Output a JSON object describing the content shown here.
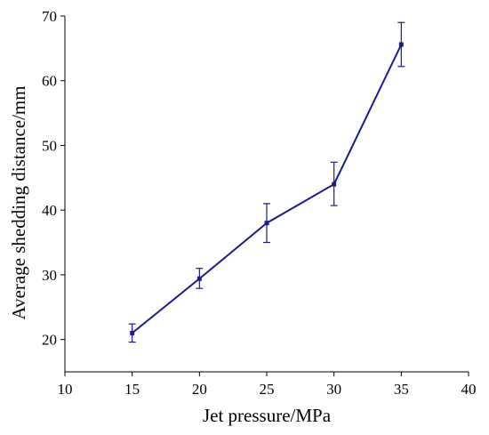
{
  "chart_data": {
    "type": "line",
    "title": "",
    "xlabel": "Jet pressure/MPa",
    "ylabel": "Average shedding distance/mm",
    "xlim": [
      10,
      40
    ],
    "ylim": [
      15,
      70
    ],
    "xticks": [
      10,
      15,
      20,
      25,
      30,
      35,
      40
    ],
    "yticks": [
      20,
      30,
      40,
      50,
      60,
      70
    ],
    "grid": false,
    "legend": "none",
    "series": [
      {
        "color": "#1a1a8c",
        "x": [
          15,
          20,
          25,
          30,
          35
        ],
        "y": [
          21.0,
          29.4,
          38.0,
          44.0,
          65.6
        ],
        "err_low": [
          19.6,
          27.9,
          35.0,
          40.7,
          62.2
        ],
        "err_high": [
          22.4,
          31.0,
          41.0,
          47.4,
          69.0
        ]
      }
    ]
  }
}
